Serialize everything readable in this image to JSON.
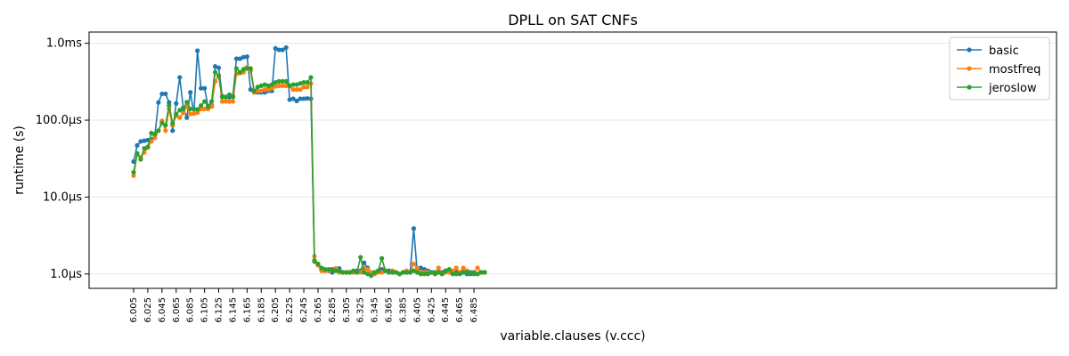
{
  "chart_data": {
    "type": "line",
    "title": "DPLL on SAT CNFs",
    "xlabel": "variable.clauses (v.ccc)",
    "ylabel": "runtime (s)",
    "y_scale": "log",
    "ylim": [
      6.5e-07,
      0.0014
    ],
    "grid": "y-major",
    "legend": "top-right",
    "x": [
      "6.005",
      "6.010",
      "6.015",
      "6.020",
      "6.025",
      "6.030",
      "6.035",
      "6.040",
      "6.045",
      "6.050",
      "6.055",
      "6.060",
      "6.065",
      "6.070",
      "6.075",
      "6.080",
      "6.085",
      "6.090",
      "6.095",
      "6.100",
      "6.105",
      "6.110",
      "6.115",
      "6.120",
      "6.125",
      "6.130",
      "6.135",
      "6.140",
      "6.145",
      "6.150",
      "6.155",
      "6.160",
      "6.165",
      "6.170",
      "6.175",
      "6.180",
      "6.185",
      "6.190",
      "6.195",
      "6.200",
      "6.205",
      "6.210",
      "6.215",
      "6.220",
      "6.225",
      "6.230",
      "6.235",
      "6.240",
      "6.245",
      "6.250",
      "6.255",
      "6.260",
      "6.265",
      "6.270",
      "6.275",
      "6.280",
      "6.285",
      "6.290",
      "6.295",
      "6.300",
      "6.305",
      "6.310",
      "6.315",
      "6.320",
      "6.325",
      "6.330",
      "6.335",
      "6.340",
      "6.345",
      "6.350",
      "6.355",
      "6.360",
      "6.365",
      "6.370",
      "6.375",
      "6.380",
      "6.385",
      "6.390",
      "6.395",
      "6.400",
      "6.405",
      "6.410",
      "6.415",
      "6.420",
      "6.425",
      "6.430",
      "6.435",
      "6.440",
      "6.445",
      "6.450",
      "6.455",
      "6.460",
      "6.465",
      "6.470",
      "6.475",
      "6.480",
      "6.485",
      "6.490",
      "6.495",
      "6.500"
    ],
    "x_ticks": [
      "6.005",
      "6.025",
      "6.045",
      "6.065",
      "6.085",
      "6.105",
      "6.125",
      "6.145",
      "6.165",
      "6.185",
      "6.205",
      "6.225",
      "6.245",
      "6.265",
      "6.285",
      "6.305",
      "6.325",
      "6.345",
      "6.365",
      "6.385",
      "6.405",
      "6.425",
      "6.445",
      "6.465",
      "6.485"
    ],
    "y_ticks": [
      {
        "value": 1e-06,
        "label": "1.0µs"
      },
      {
        "value": 1e-05,
        "label": "10.0µs"
      },
      {
        "value": 0.0001,
        "label": "100.0µs"
      },
      {
        "value": 0.001,
        "label": "1.0ms"
      }
    ],
    "series": [
      {
        "name": "basic",
        "color": "#1f77b4",
        "values": [
          2.9e-05,
          4.7e-05,
          5.3e-05,
          5.4e-05,
          5.5e-05,
          5.6e-05,
          6.4e-05,
          0.00017,
          0.00022,
          0.00022,
          0.00017,
          7.3e-05,
          0.000165,
          0.00036,
          0.000145,
          0.000108,
          0.00023,
          0.000122,
          0.0008,
          0.00026,
          0.00026,
          0.00015,
          0.000155,
          0.0005,
          0.00048,
          0.000205,
          0.0002,
          0.0002,
          0.000205,
          0.00063,
          0.00063,
          0.00066,
          0.00067,
          0.00025,
          0.00023,
          0.00023,
          0.00023,
          0.00023,
          0.00024,
          0.00024,
          0.00086,
          0.00082,
          0.00082,
          0.00088,
          0.000185,
          0.00019,
          0.000178,
          0.00019,
          0.00019,
          0.000192,
          0.00019,
          1.5e-06,
          1.35e-06,
          1.15e-06,
          1.1e-06,
          1.1e-06,
          1.05e-06,
          1.12e-06,
          1.18e-06,
          1.05e-06,
          1.05e-06,
          1.05e-06,
          1.05e-06,
          1.1e-06,
          1.1e-06,
          1.4e-06,
          1.2e-06,
          1e-06,
          1.05e-06,
          1.1e-06,
          1.15e-06,
          1.1e-06,
          1.1e-06,
          1.05e-06,
          1.05e-06,
          1e-06,
          1.05e-06,
          1.05e-06,
          1.05e-06,
          3.9e-06,
          1.05e-06,
          1.2e-06,
          1.15e-06,
          1.1e-06,
          1.05e-06,
          1.05e-06,
          1.05e-06,
          1.05e-06,
          1.1e-06,
          1.1e-06,
          1.05e-06,
          1.05e-06,
          1.05e-06,
          1.05e-06,
          1e-06,
          1e-06,
          1.05e-06,
          1e-06,
          1.05e-06,
          1.05e-06
        ]
      },
      {
        "name": "mostfreq",
        "color": "#ff7f0e",
        "values": [
          1.9e-05,
          3.6e-05,
          3.3e-05,
          3.8e-05,
          4.4e-05,
          5.3e-05,
          5.9e-05,
          7.3e-05,
          9.8e-05,
          7.3e-05,
          0.00014,
          8.5e-05,
          0.000115,
          0.000108,
          0.000125,
          0.00015,
          0.00012,
          0.000122,
          0.000125,
          0.00014,
          0.00014,
          0.00014,
          0.00015,
          0.00032,
          0.00037,
          0.000175,
          0.000175,
          0.000175,
          0.000175,
          0.0004,
          0.00041,
          0.00042,
          0.00049,
          0.00044,
          0.00023,
          0.00024,
          0.00024,
          0.00025,
          0.00025,
          0.00026,
          0.000275,
          0.00028,
          0.00028,
          0.00028,
          0.000275,
          0.00025,
          0.00025,
          0.00025,
          0.00027,
          0.00027,
          0.0003,
          1.7e-06,
          1.3e-06,
          1.1e-06,
          1.1e-06,
          1.1e-06,
          1.15e-06,
          1.18e-06,
          1.05e-06,
          1.05e-06,
          1.05e-06,
          1.05e-06,
          1.05e-06,
          1.05e-06,
          1.05e-06,
          1.2e-06,
          1.15e-06,
          1.05e-06,
          1e-06,
          1.05e-06,
          1.05e-06,
          1.1e-06,
          1.05e-06,
          1.1e-06,
          1.05e-06,
          1e-06,
          1.05e-06,
          1.1e-06,
          1.05e-06,
          1.35e-06,
          1.2e-06,
          1.05e-06,
          1.05e-06,
          1.05e-06,
          1.05e-06,
          1e-06,
          1.2e-06,
          1e-06,
          1.05e-06,
          1.05e-06,
          1.1e-06,
          1.2e-06,
          1.05e-06,
          1.2e-06,
          1.1e-06,
          1.05e-06,
          1e-06,
          1.2e-06,
          1.05e-06,
          1.05e-06
        ]
      },
      {
        "name": "jeroslow",
        "color": "#2ca02c",
        "values": [
          2.1e-05,
          3.7e-05,
          3.1e-05,
          4.3e-05,
          4.5e-05,
          6.8e-05,
          6.6e-05,
          7.3e-05,
          9.2e-05,
          8.6e-05,
          0.000155,
          9e-05,
          0.00012,
          0.000135,
          0.00014,
          0.000172,
          0.00014,
          0.00014,
          0.000138,
          0.000155,
          0.000175,
          0.00015,
          0.000175,
          0.00042,
          0.00038,
          0.0002,
          0.0002,
          0.000215,
          0.0002,
          0.00047,
          0.00042,
          0.00046,
          0.00047,
          0.00047,
          0.00024,
          0.00027,
          0.00028,
          0.00029,
          0.00028,
          0.00029,
          0.00031,
          0.00032,
          0.00032,
          0.00032,
          0.00028,
          0.00029,
          0.00029,
          0.0003,
          0.00031,
          0.00031,
          0.00036,
          1.45e-06,
          1.35e-06,
          1.2e-06,
          1.15e-06,
          1.15e-06,
          1.15e-06,
          1.1e-06,
          1.1e-06,
          1.05e-06,
          1.05e-06,
          1.05e-06,
          1.1e-06,
          1.05e-06,
          1.65e-06,
          1.05e-06,
          1e-06,
          9.5e-07,
          1.05e-06,
          1.1e-06,
          1.6e-06,
          1.1e-06,
          1.05e-06,
          1.05e-06,
          1.05e-06,
          1e-06,
          1.05e-06,
          1.05e-06,
          1.05e-06,
          1.1e-06,
          1.05e-06,
          1e-06,
          1e-06,
          1e-06,
          1.05e-06,
          1e-06,
          1.05e-06,
          1e-06,
          1.1e-06,
          1.15e-06,
          1e-06,
          1e-06,
          1e-06,
          1.05e-06,
          1.05e-06,
          1.05e-06,
          1e-06,
          1e-06,
          1.05e-06,
          1.05e-06
        ]
      }
    ]
  }
}
